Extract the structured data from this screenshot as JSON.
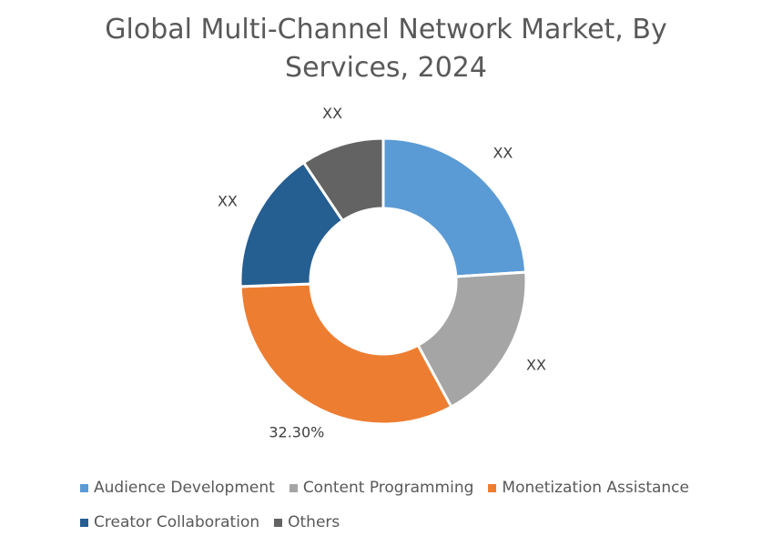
{
  "chart_data": {
    "type": "donut",
    "title": "Global Multi-Channel Network Market, By Services, 2024",
    "categories": [
      "Audience Development",
      "Content Programming",
      "Monetization Assistance",
      "Creator Collaboration",
      "Others"
    ],
    "values": [
      24,
      18.1,
      32.3,
      16.2,
      9.4
    ],
    "value_labels": [
      "XX",
      "XX",
      "32.30%",
      "XX",
      "XX"
    ],
    "colors": [
      "#5b9bd5",
      "#a5a5a5",
      "#ed7d31",
      "#255e91",
      "#636363"
    ],
    "legend": "bottom"
  }
}
